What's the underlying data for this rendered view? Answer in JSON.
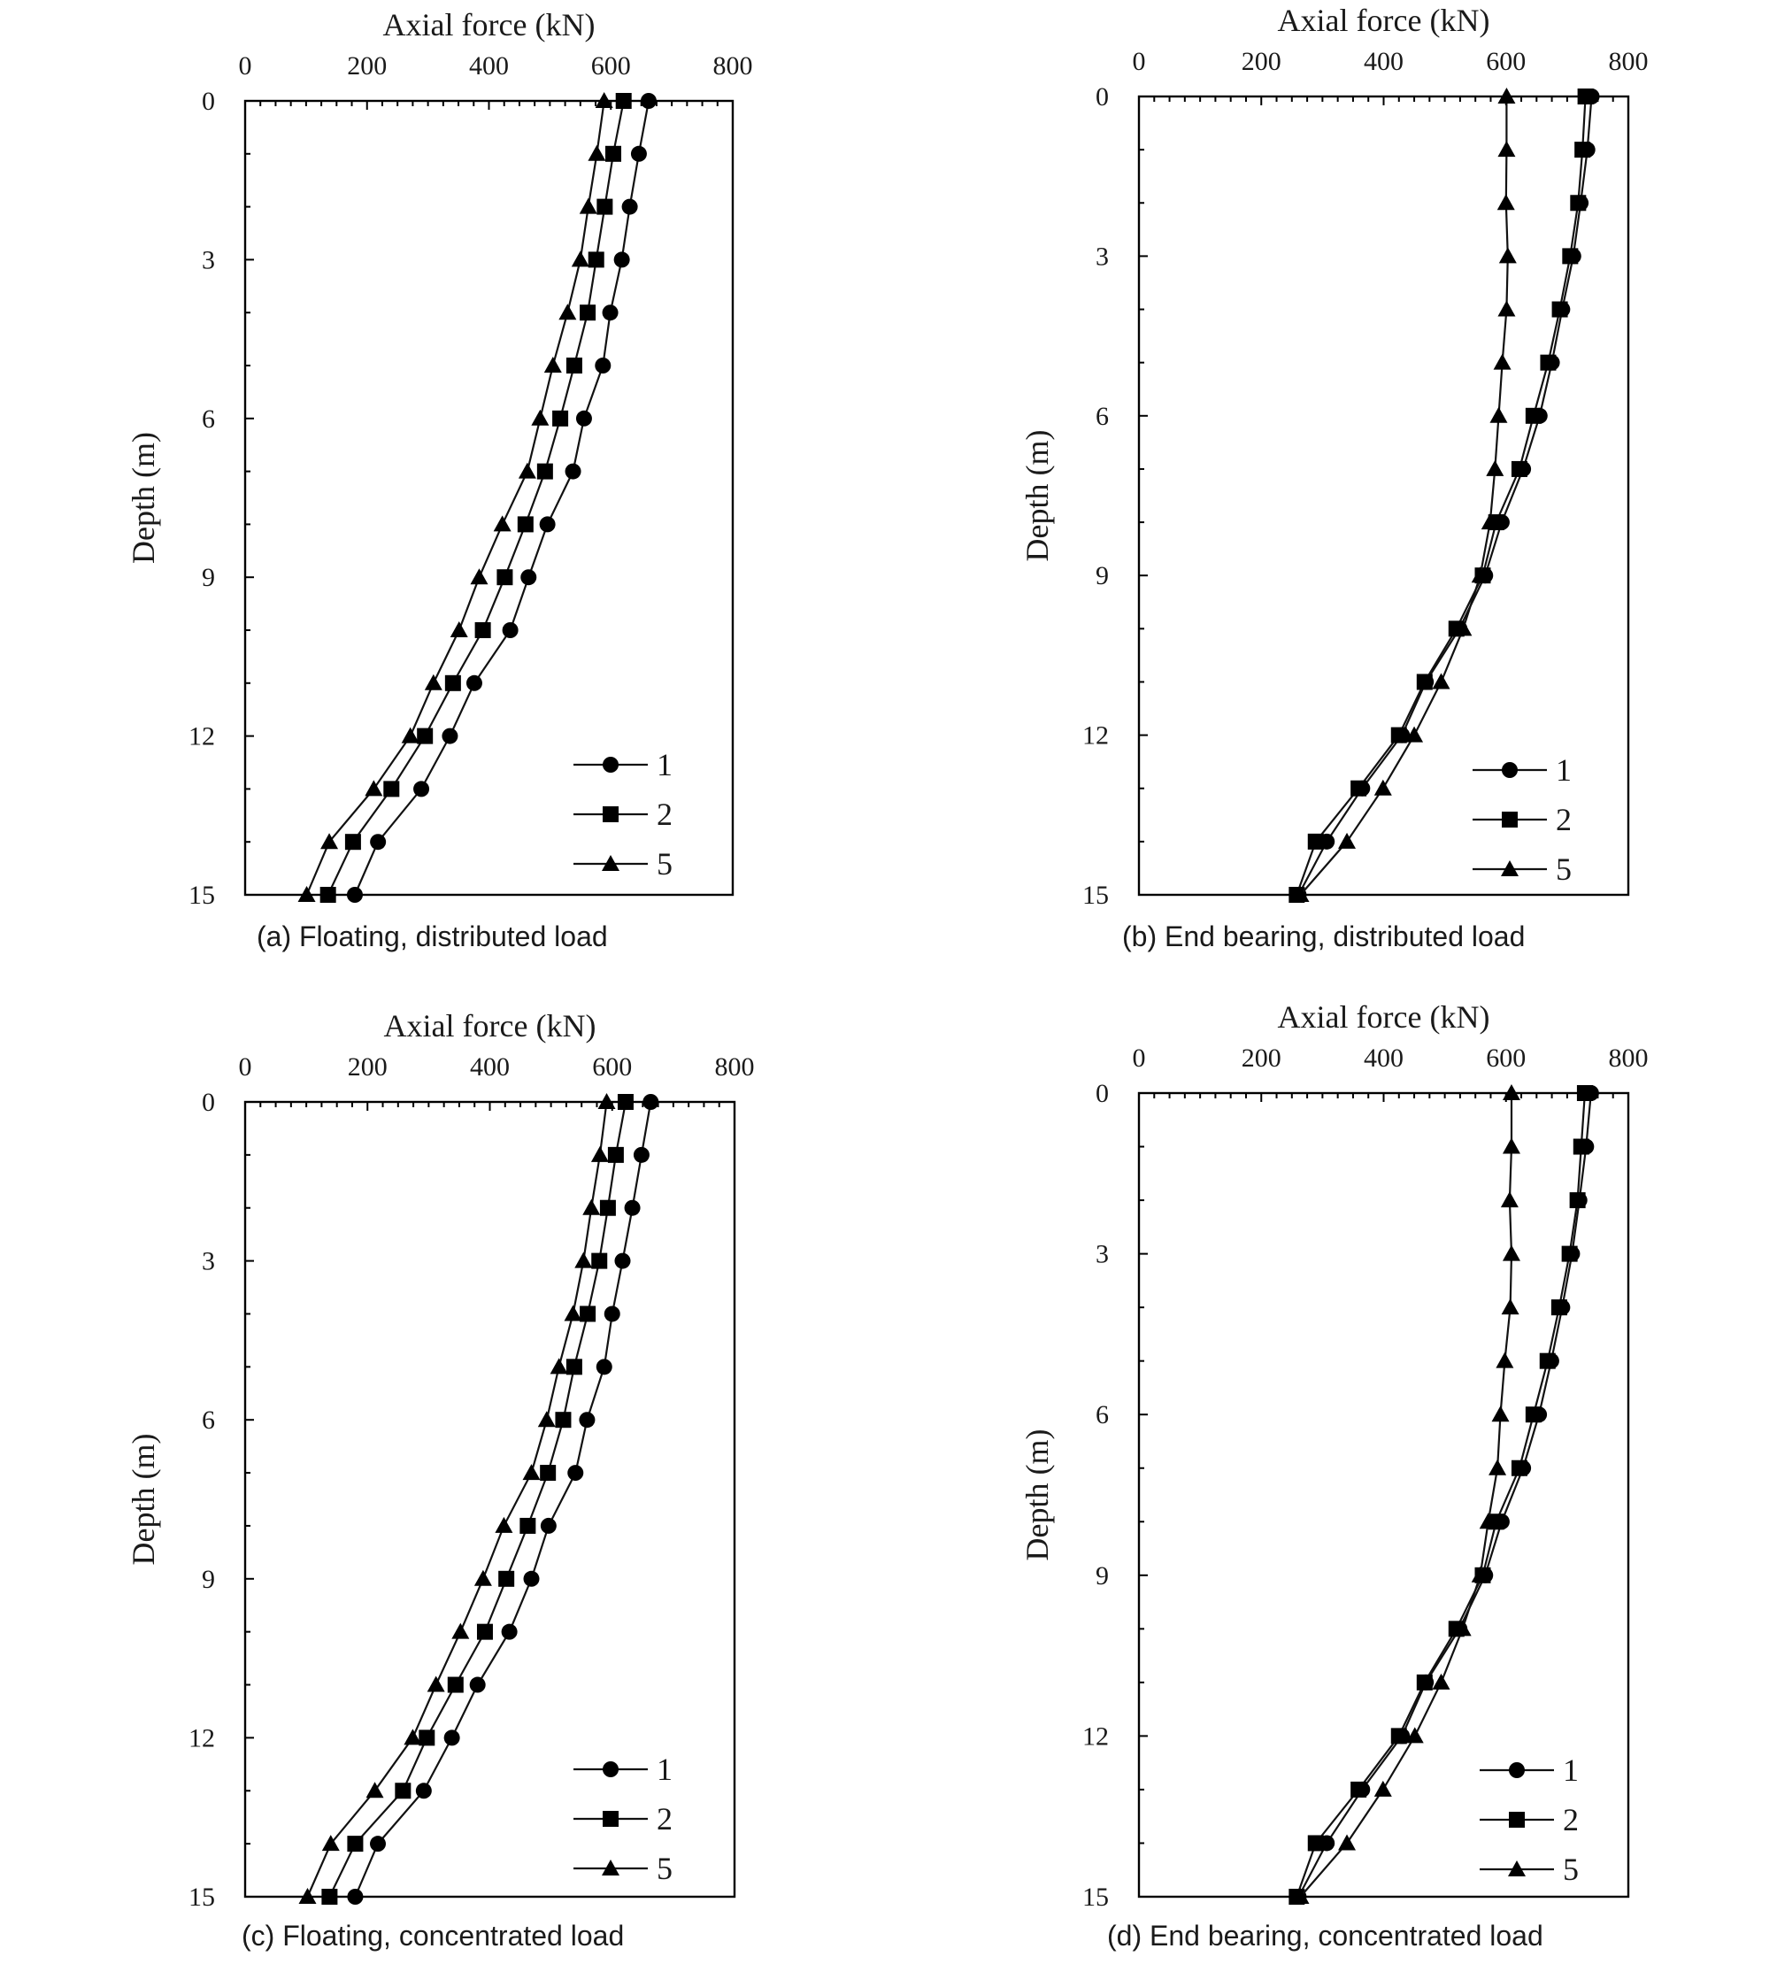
{
  "panel_colors": {
    "line": "#111111",
    "marker": "#000000",
    "background": "#ffffff"
  },
  "chart_data": [
    {
      "type": "line",
      "caption": "(a) Floating, distributed load",
      "xlabel": "Axial force (kN)",
      "ylabel": "Depth (m)",
      "xlim": [
        0,
        800
      ],
      "ylim": [
        0,
        15
      ],
      "y_inverted": true,
      "x_axis_position": "top",
      "x_ticks": [
        "0",
        "200",
        "400",
        "600",
        "800"
      ],
      "y_ticks": [
        "0",
        "3",
        "6",
        "9",
        "12",
        "15"
      ],
      "legend_position": "bottom-right",
      "depth": [
        0,
        1,
        2,
        3,
        4,
        5,
        6,
        7,
        8,
        9,
        10,
        11,
        12,
        13,
        14,
        15
      ],
      "series": [
        {
          "name": "1",
          "marker": "circle",
          "values": [
            662,
            646,
            631,
            618,
            599,
            587,
            556,
            538,
            496,
            465,
            435,
            376,
            336,
            289,
            218,
            180
          ]
        },
        {
          "name": "2",
          "marker": "square",
          "values": [
            621,
            604,
            590,
            576,
            562,
            540,
            517,
            492,
            460,
            426,
            390,
            341,
            295,
            240,
            177,
            136
          ]
        },
        {
          "name": "5",
          "marker": "triangle",
          "values": [
            589,
            577,
            563,
            550,
            529,
            505,
            484,
            463,
            422,
            384,
            351,
            309,
            271,
            211,
            138,
            101
          ]
        }
      ]
    },
    {
      "type": "line",
      "caption": "(b) End bearing, distributed load",
      "xlabel": "Axial force (kN)",
      "ylabel": "Depth (m)",
      "xlim": [
        0,
        800
      ],
      "ylim": [
        0,
        15
      ],
      "y_inverted": true,
      "x_axis_position": "top",
      "x_ticks": [
        "0",
        "200",
        "400",
        "600",
        "800"
      ],
      "y_ticks": [
        "0",
        "3",
        "6",
        "9",
        "12",
        "15"
      ],
      "legend_position": "bottom-right",
      "depth": [
        0,
        1,
        2,
        3,
        4,
        5,
        6,
        7,
        8,
        9,
        10,
        11,
        12,
        13,
        14,
        15
      ],
      "series": [
        {
          "name": "1",
          "marker": "circle",
          "values": [
            740,
            733,
            722,
            710,
            692,
            675,
            655,
            628,
            593,
            566,
            524,
            469,
            430,
            365,
            307,
            261
          ]
        },
        {
          "name": "2",
          "marker": "square",
          "values": [
            730,
            725,
            718,
            705,
            688,
            669,
            645,
            622,
            584,
            562,
            519,
            467,
            425,
            359,
            289,
            258
          ]
        },
        {
          "name": "5",
          "marker": "triangle",
          "values": [
            601,
            601,
            600,
            603,
            601,
            594,
            588,
            582,
            574,
            558,
            530,
            494,
            450,
            399,
            340,
            264
          ]
        }
      ]
    },
    {
      "type": "line",
      "caption": "(c) Floating, concentrated load",
      "xlabel": "Axial force (kN)",
      "ylabel": "Depth (m)",
      "xlim": [
        0,
        800
      ],
      "ylim": [
        0,
        15
      ],
      "y_inverted": true,
      "x_axis_position": "top",
      "x_ticks": [
        "0",
        "200",
        "400",
        "600",
        "800"
      ],
      "y_ticks": [
        "0",
        "3",
        "6",
        "9",
        "12",
        "15"
      ],
      "legend_position": "bottom-right",
      "depth": [
        0,
        1,
        2,
        3,
        4,
        5,
        6,
        7,
        8,
        9,
        10,
        11,
        12,
        13,
        14,
        15
      ],
      "series": [
        {
          "name": "1",
          "marker": "circle",
          "values": [
            663,
            648,
            633,
            617,
            600,
            587,
            559,
            540,
            496,
            468,
            432,
            380,
            338,
            292,
            217,
            180
          ]
        },
        {
          "name": "2",
          "marker": "square",
          "values": [
            622,
            606,
            593,
            579,
            560,
            538,
            520,
            495,
            462,
            427,
            392,
            344,
            297,
            258,
            180,
            138
          ]
        },
        {
          "name": "5",
          "marker": "triangle",
          "values": [
            591,
            580,
            566,
            553,
            536,
            513,
            493,
            468,
            423,
            389,
            352,
            312,
            274,
            212,
            140,
            102
          ]
        }
      ]
    },
    {
      "type": "line",
      "caption": "(d) End bearing, concentrated load",
      "xlabel": "Axial force (kN)",
      "ylabel": "Depth (m)",
      "xlim": [
        0,
        800
      ],
      "ylim": [
        0,
        15
      ],
      "y_inverted": true,
      "x_axis_position": "top",
      "x_ticks": [
        "0",
        "200",
        "400",
        "600",
        "800"
      ],
      "y_ticks": [
        "0",
        "3",
        "6",
        "9",
        "12",
        "15"
      ],
      "legend_position": "bottom-right",
      "depth": [
        0,
        1,
        2,
        3,
        4,
        5,
        6,
        7,
        8,
        9,
        10,
        11,
        12,
        13,
        14,
        15
      ],
      "series": [
        {
          "name": "1",
          "marker": "circle",
          "values": [
            739,
            731,
            720,
            708,
            692,
            674,
            654,
            628,
            593,
            566,
            524,
            469,
            430,
            365,
            307,
            261
          ]
        },
        {
          "name": "2",
          "marker": "square",
          "values": [
            729,
            723,
            717,
            704,
            687,
            668,
            645,
            622,
            584,
            562,
            519,
            467,
            425,
            359,
            289,
            258
          ]
        },
        {
          "name": "5",
          "marker": "triangle",
          "values": [
            609,
            609,
            606,
            609,
            607,
            598,
            591,
            586,
            571,
            558,
            529,
            494,
            451,
            399,
            340,
            264
          ]
        }
      ]
    }
  ]
}
